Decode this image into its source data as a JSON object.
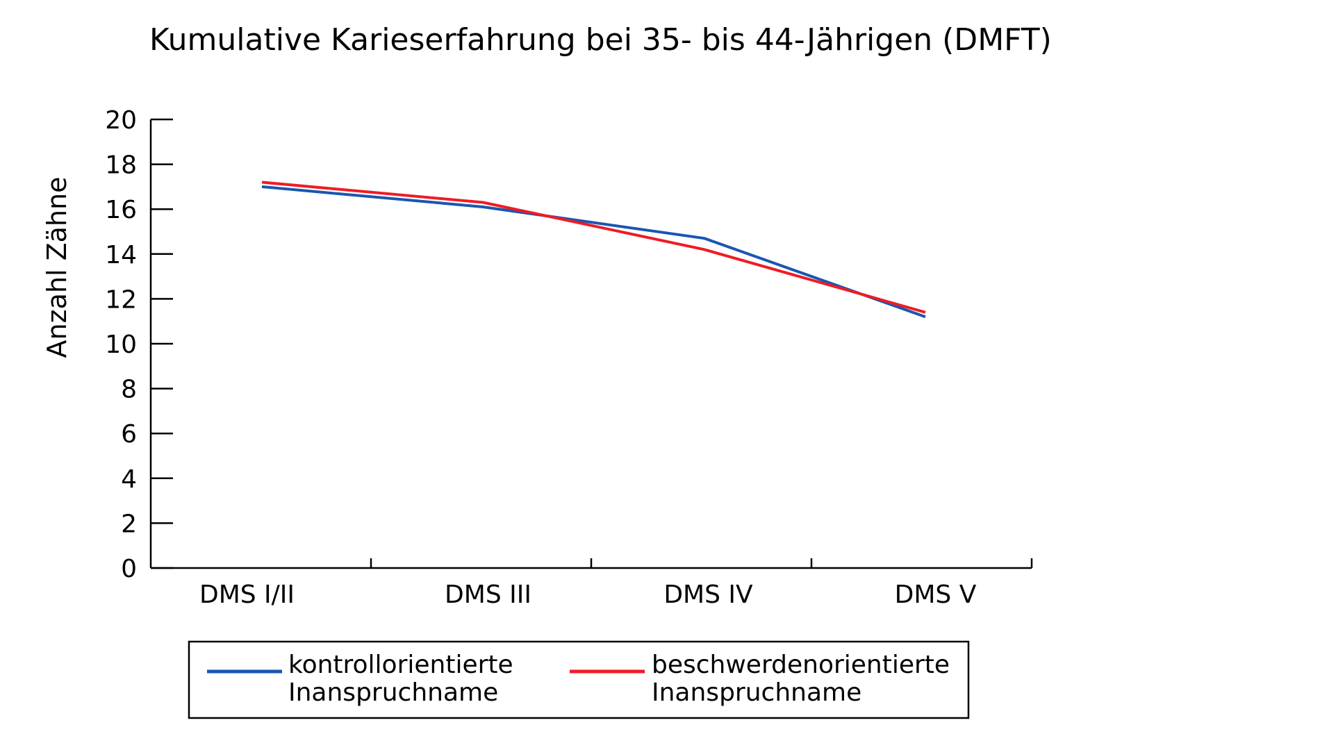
{
  "chart_data": {
    "type": "line",
    "title": "Kumulative Karieserfahrung bei 35- bis 44-Jährigen (DMFT)",
    "xlabel": "",
    "ylabel": "Anzahl Zähne",
    "categories": [
      "DMS I/II",
      "DMS III",
      "DMS IV",
      "DMS V"
    ],
    "ylim": [
      0,
      20
    ],
    "yticks": [
      0,
      2,
      4,
      6,
      8,
      10,
      12,
      14,
      16,
      18,
      20
    ],
    "grid": false,
    "legend_position": "bottom",
    "series": [
      {
        "name_lines": [
          "kontrollorientierte",
          "Inanspruchname"
        ],
        "color": "#1a56b0",
        "values": [
          17.0,
          16.1,
          14.7,
          11.2
        ]
      },
      {
        "name_lines": [
          "beschwerdenorientierte",
          "Inanspruchname"
        ],
        "color": "#ee1c25",
        "values": [
          17.2,
          16.3,
          14.2,
          11.4
        ]
      }
    ]
  }
}
